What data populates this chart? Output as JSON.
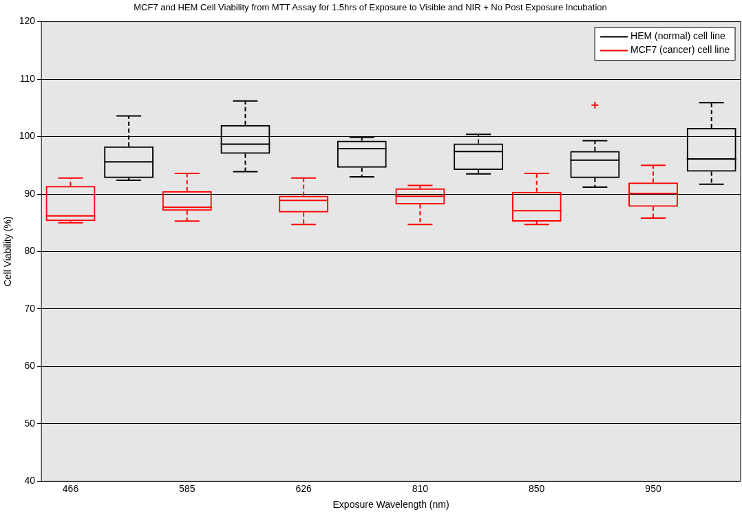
{
  "chart_data": {
    "type": "box",
    "title": "MCF7 and HEM Cell Viability from MTT Assay for 1.5hrs of Exposure to Visible and NIR + No Post Exposure Incubation",
    "xlabel": "Exposure Wavelength (nm)",
    "ylabel": "Cell Viability (%)",
    "categories": [
      "466",
      null,
      "585",
      null,
      "626",
      null,
      "810",
      null,
      "850",
      null,
      "950",
      null
    ],
    "ylim": [
      40,
      120
    ],
    "yticks": [
      40,
      50,
      60,
      70,
      80,
      90,
      100,
      110,
      120
    ],
    "grid": "y",
    "legend": "top right",
    "line_style": "dashed",
    "series": [
      {
        "name": "HEM (normal) cell line",
        "color": "#000000",
        "boxes": [
          null,
          {
            "low": 92.4,
            "q1": 92.8,
            "median": 95.6,
            "q3": 98.3,
            "high": 103.6
          },
          null,
          {
            "low": 93.9,
            "q1": 97.0,
            "median": 98.7,
            "q3": 102.0,
            "high": 106.2
          },
          null,
          {
            "low": 93.0,
            "q1": 94.6,
            "median": 97.9,
            "q3": 99.3,
            "high": 99.9
          },
          null,
          {
            "low": 93.5,
            "q1": 94.2,
            "median": 97.4,
            "q3": 98.8,
            "high": 100.4
          },
          null,
          {
            "low": 91.2,
            "q1": 92.8,
            "median": 95.9,
            "q3": 97.5,
            "high": 99.3,
            "outliers": [
              105.5
            ]
          },
          null,
          {
            "low": 91.7,
            "q1": 93.9,
            "median": 96.1,
            "q3": 101.5,
            "high": 105.9
          }
        ]
      },
      {
        "name": "MCF7 (cancer) cell line",
        "color": "#ff0000",
        "boxes": [
          {
            "low": 85.0,
            "q1": 85.3,
            "median": 86.2,
            "q3": 91.4,
            "high": 92.8
          },
          null,
          {
            "low": 85.3,
            "q1": 87.1,
            "median": 87.7,
            "q3": 90.5,
            "high": 93.6
          },
          null,
          {
            "low": 84.7,
            "q1": 86.8,
            "median": 88.9,
            "q3": 89.7,
            "high": 92.8
          },
          null,
          {
            "low": 84.7,
            "q1": 88.2,
            "median": 89.6,
            "q3": 91.0,
            "high": 91.5
          },
          null,
          {
            "low": 84.7,
            "q1": 85.2,
            "median": 87.1,
            "q3": 90.4,
            "high": 93.6
          },
          null,
          {
            "low": 85.8,
            "q1": 87.8,
            "median": 90.1,
            "q3": 92.0,
            "high": 95.0
          },
          null
        ]
      }
    ]
  }
}
